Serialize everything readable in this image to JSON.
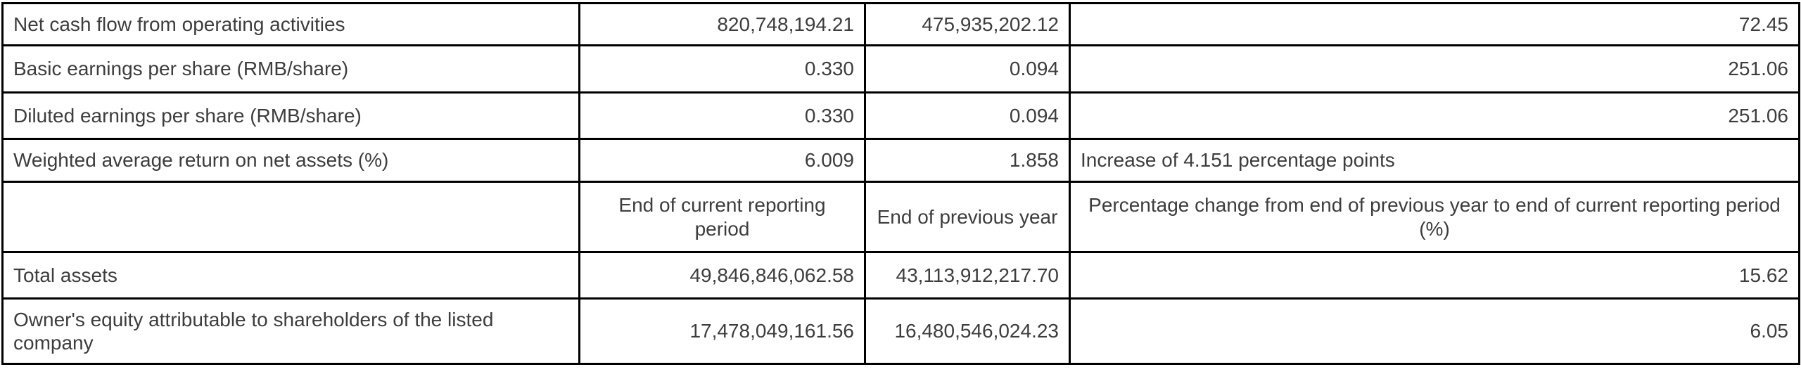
{
  "table": {
    "colors": {
      "text": "#3d3d3d",
      "border": "#000000",
      "background": "#ffffff"
    },
    "column_headers": {
      "metric": "",
      "current": "End of current reporting period",
      "previous": "End of previous year",
      "change": "Percentage change from end of previous year to end of current reporting period (%)"
    },
    "rows": [
      {
        "cells": [
          "Net cash flow from operating activities",
          "820,748,194.21",
          "475,935,202.12",
          "72.45"
        ]
      },
      {
        "cells": [
          "Basic earnings per share (RMB/share)",
          "0.330",
          "0.094",
          "251.06"
        ]
      },
      {
        "cells": [
          "Diluted earnings per share (RMB/share)",
          "0.330",
          "0.094",
          "251.06"
        ]
      },
      {
        "cells": [
          "Weighted average return on net assets (%)",
          "6.009",
          "1.858",
          "Increase of 4.151 percentage points"
        ]
      },
      {
        "cells": [
          "",
          "End of current reporting period",
          "End of previous year",
          "Percentage change from end of previous year to end of current reporting period (%)"
        ]
      },
      {
        "cells": [
          "Total assets",
          "49,846,846,062.58",
          "43,113,912,217.70",
          "15.62"
        ]
      },
      {
        "cells": [
          "Owner's equity attributable to shareholders of the listed company",
          "17,478,049,161.56",
          "16,480,546,024.23",
          "6.05"
        ]
      }
    ]
  }
}
